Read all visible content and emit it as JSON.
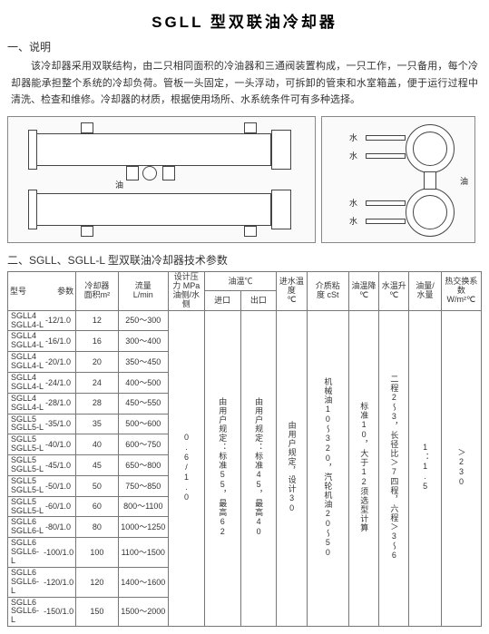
{
  "title": "SGLL  型双联油冷却器",
  "section1_h": "一、说明",
  "description": "该冷却器采用双联结构，由二只相同面积的冷油器和三通阀装置构成，一只工作，一只备用，每个冷却器能承担整个系统的冷却负荷。管板一头固定，一头浮动，可拆卸的管束和水室箱盖，便于运行过程中清洗、检查和维修。冷却器的材质，根据使用场所、水系统条件可有多种选择。",
  "diag": {
    "label_oil": "油",
    "label_water": "水"
  },
  "section2_h": "二、SGLL、SGLL-L 型双联油冷却器技术参数",
  "table": {
    "headers": {
      "model_param": "型号",
      "param": "参数",
      "area": "冷却器\n面积m²",
      "flow": "流量\nL/min",
      "pressure": "设计压力 MPa\n油侧/水侧",
      "oil_temp": "油温℃",
      "oil_in": "进口",
      "oil_out": "出口",
      "water_in": "进水温度\n℃",
      "visc": "介质粘\n度 cSt",
      "drop": "油温降\n℃",
      "wrise": "水温升\n℃",
      "ratio": "油量/\n水量",
      "coef": "热交换系数\nW/m²℃"
    },
    "rows": [
      {
        "m1": "SGLL4",
        "m2": "SGLL4-L",
        "ms": "-12/1.0",
        "area": "12",
        "flow": "250～300"
      },
      {
        "m1": "SGLL4",
        "m2": "SGLL4-L",
        "ms": "-16/1.0",
        "area": "16",
        "flow": "300～400"
      },
      {
        "m1": "SGLL4",
        "m2": "SGLL4-L",
        "ms": "-20/1.0",
        "area": "20",
        "flow": "350～450"
      },
      {
        "m1": "SGLL4",
        "m2": "SGLL4-L",
        "ms": "-24/1.0",
        "area": "24",
        "flow": "400～500"
      },
      {
        "m1": "SGLL4",
        "m2": "SGLL4-L",
        "ms": "-28/1.0",
        "area": "28",
        "flow": "450～550"
      },
      {
        "m1": "SGLL5",
        "m2": "SGLL5-L",
        "ms": "-35/1.0",
        "area": "35",
        "flow": "500～600"
      },
      {
        "m1": "SGLL5",
        "m2": "SGLL5-L",
        "ms": "-40/1.0",
        "area": "40",
        "flow": "600～750"
      },
      {
        "m1": "SGLL5",
        "m2": "SGLL5-L",
        "ms": "-45/1.0",
        "area": "45",
        "flow": "650～800"
      },
      {
        "m1": "SGLL5",
        "m2": "SGLL5-L",
        "ms": "-50/1.0",
        "area": "50",
        "flow": "750～850"
      },
      {
        "m1": "SGLL5",
        "m2": "SGLL5-L",
        "ms": "-60/1.0",
        "area": "60",
        "flow": "800～1100"
      },
      {
        "m1": "SGLL6",
        "m2": "SGLL6-L",
        "ms": "-80/1.0",
        "area": "80",
        "flow": "1000～1250"
      },
      {
        "m1": "SGLL6",
        "m2": "SGLL6-L",
        "ms": "-100/1.0",
        "area": "100",
        "flow": "1100～1500"
      },
      {
        "m1": "SGLL6",
        "m2": "SGLL6-L",
        "ms": "-120/1.0",
        "area": "120",
        "flow": "1400～1600"
      },
      {
        "m1": "SGLL6",
        "m2": "SGLL6-L",
        "ms": "-150/1.0",
        "area": "150",
        "flow": "1500～2000"
      }
    ],
    "shared": {
      "pressure": "0.6/1.0",
      "oil_in": "由用户规定：标准55，最高62",
      "oil_out": "由用户规定：标准45，最高40",
      "water_in": "由用户规定，设计30",
      "visc": "机械油10～320，汽轮机油20～50",
      "drop": "标准10，大于12须选型计算",
      "wrise": "二程2～3，长径比＞7四程，六程＞3～6",
      "ratio": "1：1.5",
      "coef": "＞230"
    }
  }
}
